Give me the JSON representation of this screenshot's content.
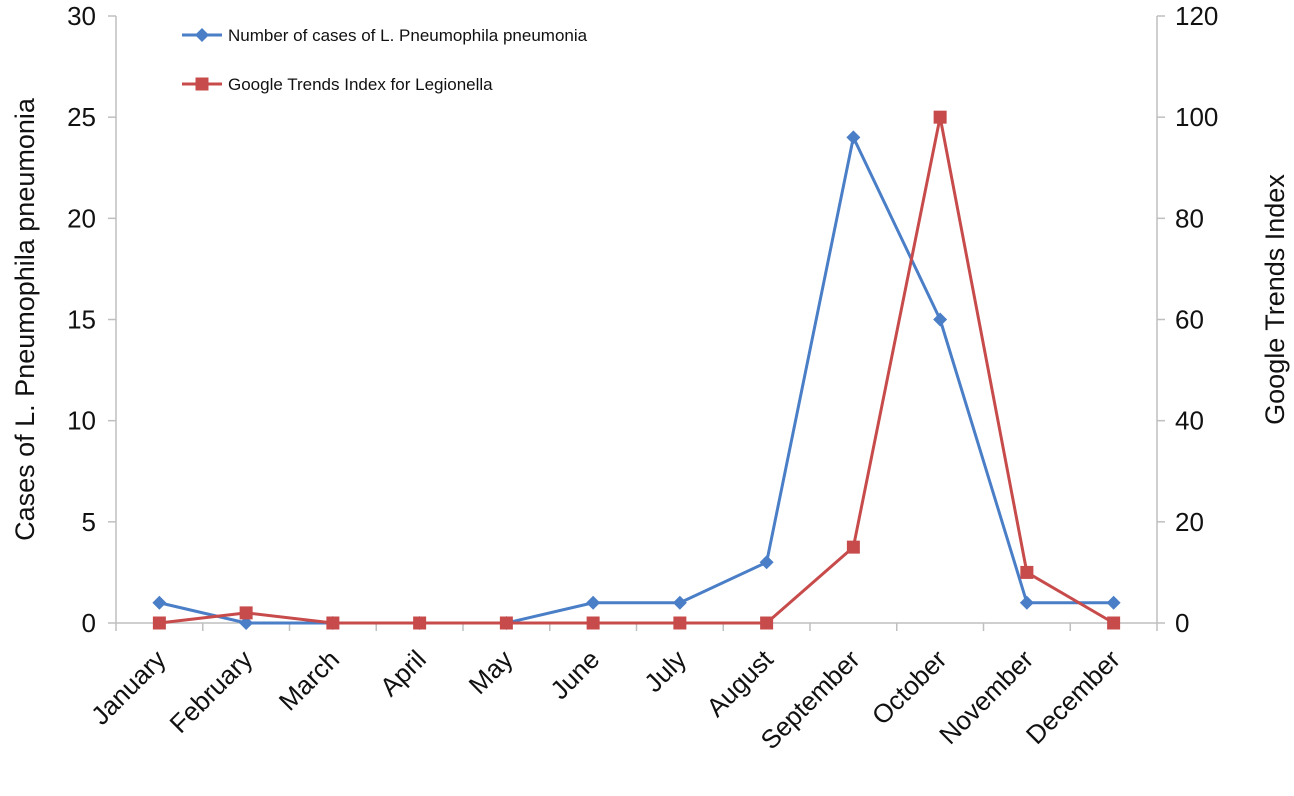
{
  "chart_data": {
    "type": "line",
    "categories": [
      "January",
      "February",
      "March",
      "April",
      "May",
      "June",
      "July",
      "August",
      "September",
      "October",
      "November",
      "December"
    ],
    "series": [
      {
        "name": "Number of cases of L. Pneumophila pneumonia",
        "axis": "left",
        "color": "#4A7EC7",
        "marker": "diamond",
        "values": [
          1,
          0,
          0,
          0,
          0,
          1,
          1,
          3,
          24,
          15,
          1,
          1
        ]
      },
      {
        "name": "Google Trends Index for Legionella",
        "axis": "right",
        "color": "#C84B4B",
        "marker": "square",
        "values": [
          0,
          2,
          0,
          0,
          0,
          0,
          0,
          0,
          15,
          100,
          10,
          0
        ]
      }
    ],
    "y_left": {
      "label": "Cases of L. Pneumophila pneumonia",
      "range": [
        0,
        30
      ],
      "ticks": [
        0,
        5,
        10,
        15,
        20,
        25,
        30
      ]
    },
    "y_right": {
      "label": "Google Trends Index",
      "range": [
        0,
        120
      ],
      "ticks": [
        0,
        20,
        40,
        60,
        80,
        100,
        120
      ]
    },
    "grid": false,
    "legend_position": "top-left"
  }
}
